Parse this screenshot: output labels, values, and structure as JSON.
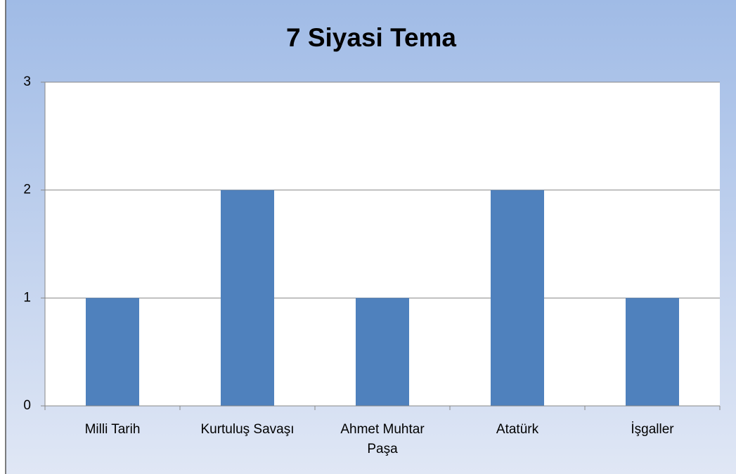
{
  "chart_data": {
    "type": "bar",
    "title": "7 Siyasi Tema",
    "categories": [
      "Milli Tarih",
      "Kurtuluş Savaşı",
      "Ahmet Muhtar Paşa",
      "Atatürk",
      "İşgaller"
    ],
    "values": [
      1,
      2,
      1,
      2,
      1
    ],
    "color": "#4f81bd",
    "ylim": [
      0,
      3
    ],
    "yticks": [
      0,
      1,
      2,
      3
    ],
    "grid": true
  }
}
